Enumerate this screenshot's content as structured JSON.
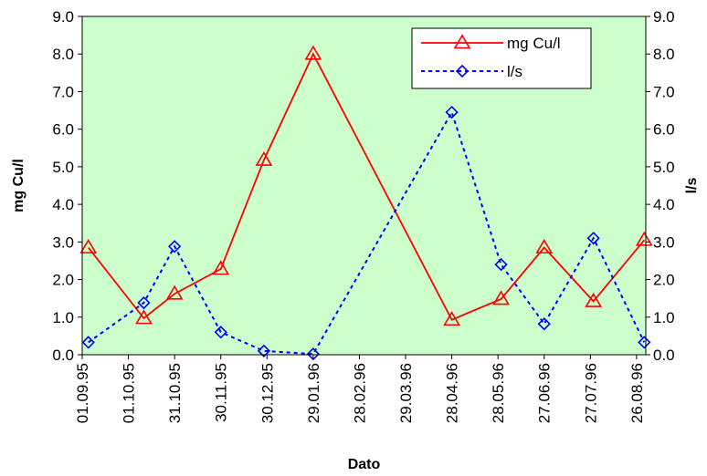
{
  "chart_data": {
    "type": "line",
    "title": "",
    "xlabel": "Dato",
    "ylabel": "mg Cu/l",
    "y2label": "l/s",
    "x_axis": {
      "type": "date",
      "range": [
        "1995-09-01",
        "1996-09-01"
      ],
      "tick_labels": [
        "01.09.95",
        "01.10.95",
        "31.10.95",
        "30.11.95",
        "30.12.95",
        "29.01.96",
        "28.02.96",
        "29.03.96",
        "28.04.96",
        "28.05.96",
        "27.06.96",
        "27.07.96",
        "26.08.96"
      ],
      "tick_dates": [
        "1995-09-01",
        "1995-10-01",
        "1995-10-31",
        "1995-11-30",
        "1995-12-30",
        "1996-01-29",
        "1996-02-28",
        "1996-03-29",
        "1996-04-28",
        "1996-05-28",
        "1996-06-27",
        "1996-07-27",
        "1996-08-26"
      ]
    },
    "ylim": [
      0,
      9
    ],
    "y2lim": [
      0,
      9
    ],
    "y_tick_labels": [
      "0.0",
      "1.0",
      "2.0",
      "3.0",
      "4.0",
      "5.0",
      "6.0",
      "7.0",
      "8.0",
      "9.0"
    ],
    "y_ticks": [
      0,
      1,
      2,
      3,
      4,
      5,
      6,
      7,
      8,
      9
    ],
    "grid": false,
    "plot_background": "#ccffcc",
    "legend_position": "top-right",
    "series": [
      {
        "name": "mg Cu/l",
        "axis": "left",
        "color": "#ff0000",
        "line_style": "solid",
        "marker": "triangle",
        "points": [
          {
            "x": "1995-09-05",
            "y": 2.85
          },
          {
            "x": "1995-10-11",
            "y": 0.97
          },
          {
            "x": "1995-10-31",
            "y": 1.62
          },
          {
            "x": "1995-11-30",
            "y": 2.28
          },
          {
            "x": "1995-12-28",
            "y": 5.18
          },
          {
            "x": "1996-01-29",
            "y": 8.0
          },
          {
            "x": "1996-04-28",
            "y": 0.93
          },
          {
            "x": "1996-05-30",
            "y": 1.48
          },
          {
            "x": "1996-06-27",
            "y": 2.85
          },
          {
            "x": "1996-07-29",
            "y": 1.42
          },
          {
            "x": "1996-08-31",
            "y": 3.05
          }
        ]
      },
      {
        "name": "l/s",
        "axis": "right",
        "color": "#0000ff",
        "line_style": "dotted",
        "marker": "diamond",
        "points": [
          {
            "x": "1995-09-05",
            "y": 0.33
          },
          {
            "x": "1995-10-11",
            "y": 1.38
          },
          {
            "x": "1995-10-31",
            "y": 2.88
          },
          {
            "x": "1995-11-30",
            "y": 0.6
          },
          {
            "x": "1995-12-28",
            "y": 0.1
          },
          {
            "x": "1996-01-29",
            "y": 0.02
          },
          {
            "x": "1996-04-28",
            "y": 6.45
          },
          {
            "x": "1996-05-30",
            "y": 2.4
          },
          {
            "x": "1996-06-27",
            "y": 0.82
          },
          {
            "x": "1996-07-29",
            "y": 3.1
          },
          {
            "x": "1996-08-31",
            "y": 0.33
          }
        ]
      }
    ]
  }
}
